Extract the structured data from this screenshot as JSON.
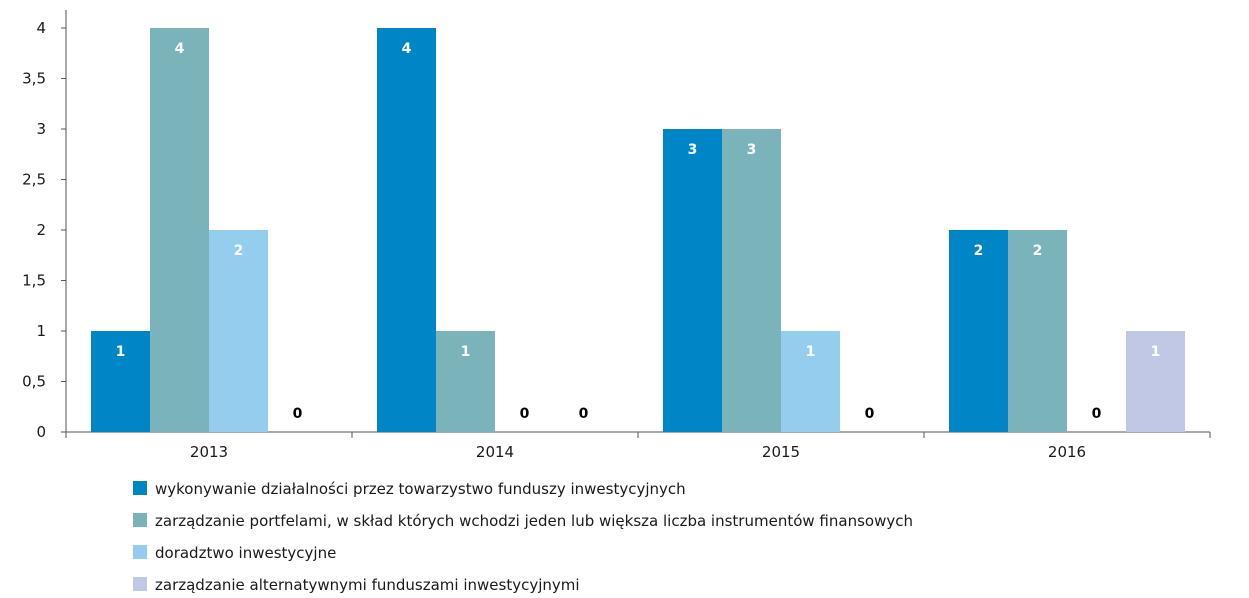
{
  "chart_data": {
    "type": "bar",
    "categories": [
      "2013",
      "2014",
      "2015",
      "2016"
    ],
    "series": [
      {
        "name": "wykonywanie działalności przez towarzystwo funduszy inwestycyjnych",
        "color": "#0085c7",
        "values": [
          1,
          4,
          3,
          2
        ]
      },
      {
        "name": "zarządzanie portfelami, w skład których wchodzi jeden lub większa liczba instrumentów finansowych",
        "color": "#7bb3bb",
        "values": [
          4,
          1,
          3,
          2
        ]
      },
      {
        "name": "doradztwo inwestycyjne",
        "color": "#95cdee",
        "values": [
          2,
          0,
          1,
          0
        ]
      },
      {
        "name": "zarządzanie alternatywnymi funduszami inwestycyjnymi",
        "color": "#c0c8e6",
        "values": [
          0,
          0,
          0,
          1
        ]
      }
    ],
    "ylim": [
      0,
      4
    ],
    "yticks": [
      0,
      {
        "value": 0.5,
        "label": "0,5"
      },
      1,
      {
        "value": 1.5,
        "label": "1,5"
      },
      2,
      {
        "value": 2.5,
        "label": "2,5"
      },
      3,
      {
        "value": 3.5,
        "label": "3,5"
      },
      4
    ],
    "legend": "bottom"
  }
}
